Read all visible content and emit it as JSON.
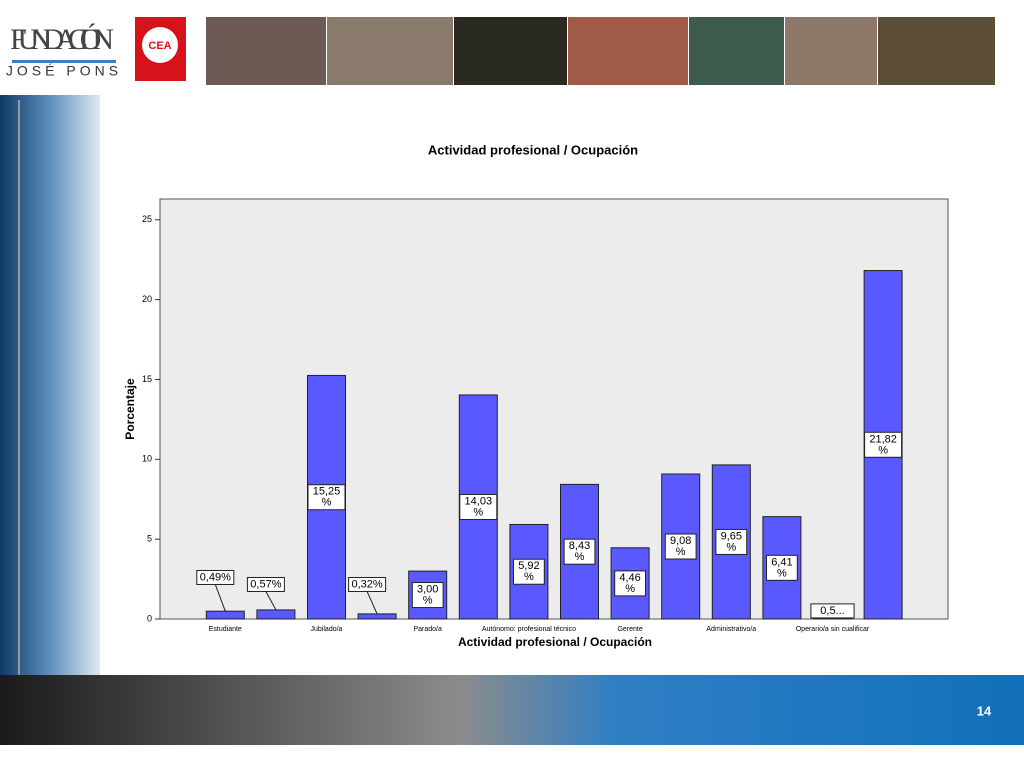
{
  "header": {
    "logo_title": "FUNDACIÓN",
    "logo_subtitle": "JOSÉ PONS",
    "badge": "CEA"
  },
  "page_number": "14",
  "chart_data": {
    "type": "bar",
    "title": "Actividad profesional / Ocupación",
    "x_label": "Actividad profesional / Ocupación",
    "y_label": "Porcentaje",
    "categories": [
      "Estudiante",
      null,
      "Jubilado/a",
      null,
      "Parado/a",
      null,
      "Autónomo: profesional técnico",
      null,
      "Gerente",
      null,
      "Administrativo/a",
      null,
      "Operario/a sin cualificar",
      null
    ],
    "values": [
      0.49,
      0.57,
      15.25,
      0.32,
      3.0,
      14.03,
      5.92,
      8.43,
      4.46,
      9.08,
      9.65,
      6.41,
      0.57,
      21.82
    ],
    "value_labels": [
      "0,49%",
      "0,57%",
      "15,25 %",
      "0,32%",
      "3,00 %",
      "14,03 %",
      "5,92 %",
      "8,43 %",
      "4,46 %",
      "9,08 %",
      "9,65 %",
      "6,41 %",
      "0,5...",
      "21,82 %"
    ],
    "color": "#5959ff",
    "ylim": [
      0,
      26.3
    ],
    "yticks": [
      0,
      5,
      10,
      15,
      20,
      25
    ],
    "grid": false
  }
}
